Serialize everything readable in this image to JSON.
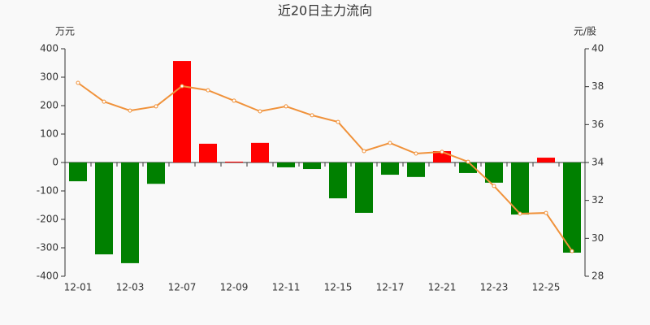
{
  "chart_data": {
    "type": "bar-line",
    "title": "近20日主力流向",
    "y_label": "万元",
    "y2_label": "元/股",
    "categories": [
      "12-01",
      null,
      "12-03",
      null,
      "12-07",
      null,
      "12-09",
      null,
      "12-11",
      null,
      "12-15",
      null,
      "12-17",
      null,
      "12-21",
      null,
      "12-23",
      null,
      "12-25",
      null
    ],
    "bars": {
      "values": [
        -66,
        -323,
        -354,
        -75,
        357,
        66,
        3,
        69,
        -17,
        -23,
        -126,
        -177,
        -43,
        -51,
        40,
        -37,
        -71,
        -183,
        17,
        -317
      ],
      "positive_color": "#ff0000",
      "negative_color": "#008000"
    },
    "line": {
      "values": [
        38.2,
        37.21,
        36.74,
        36.96,
        38.03,
        37.81,
        37.26,
        36.7,
        36.96,
        36.49,
        36.14,
        34.6,
        35.03,
        34.47,
        34.56,
        34.04,
        32.76,
        31.3,
        31.34,
        29.33
      ],
      "color": "#f0923b",
      "axis": "y2"
    },
    "ylim": [
      -400,
      400
    ],
    "yticks": [
      -400,
      -300,
      -200,
      -100,
      0,
      100,
      200,
      300,
      400
    ],
    "y2lim": [
      28,
      40
    ],
    "y2ticks": [
      28,
      30,
      32,
      34,
      36,
      38,
      40
    ],
    "grid": false
  }
}
